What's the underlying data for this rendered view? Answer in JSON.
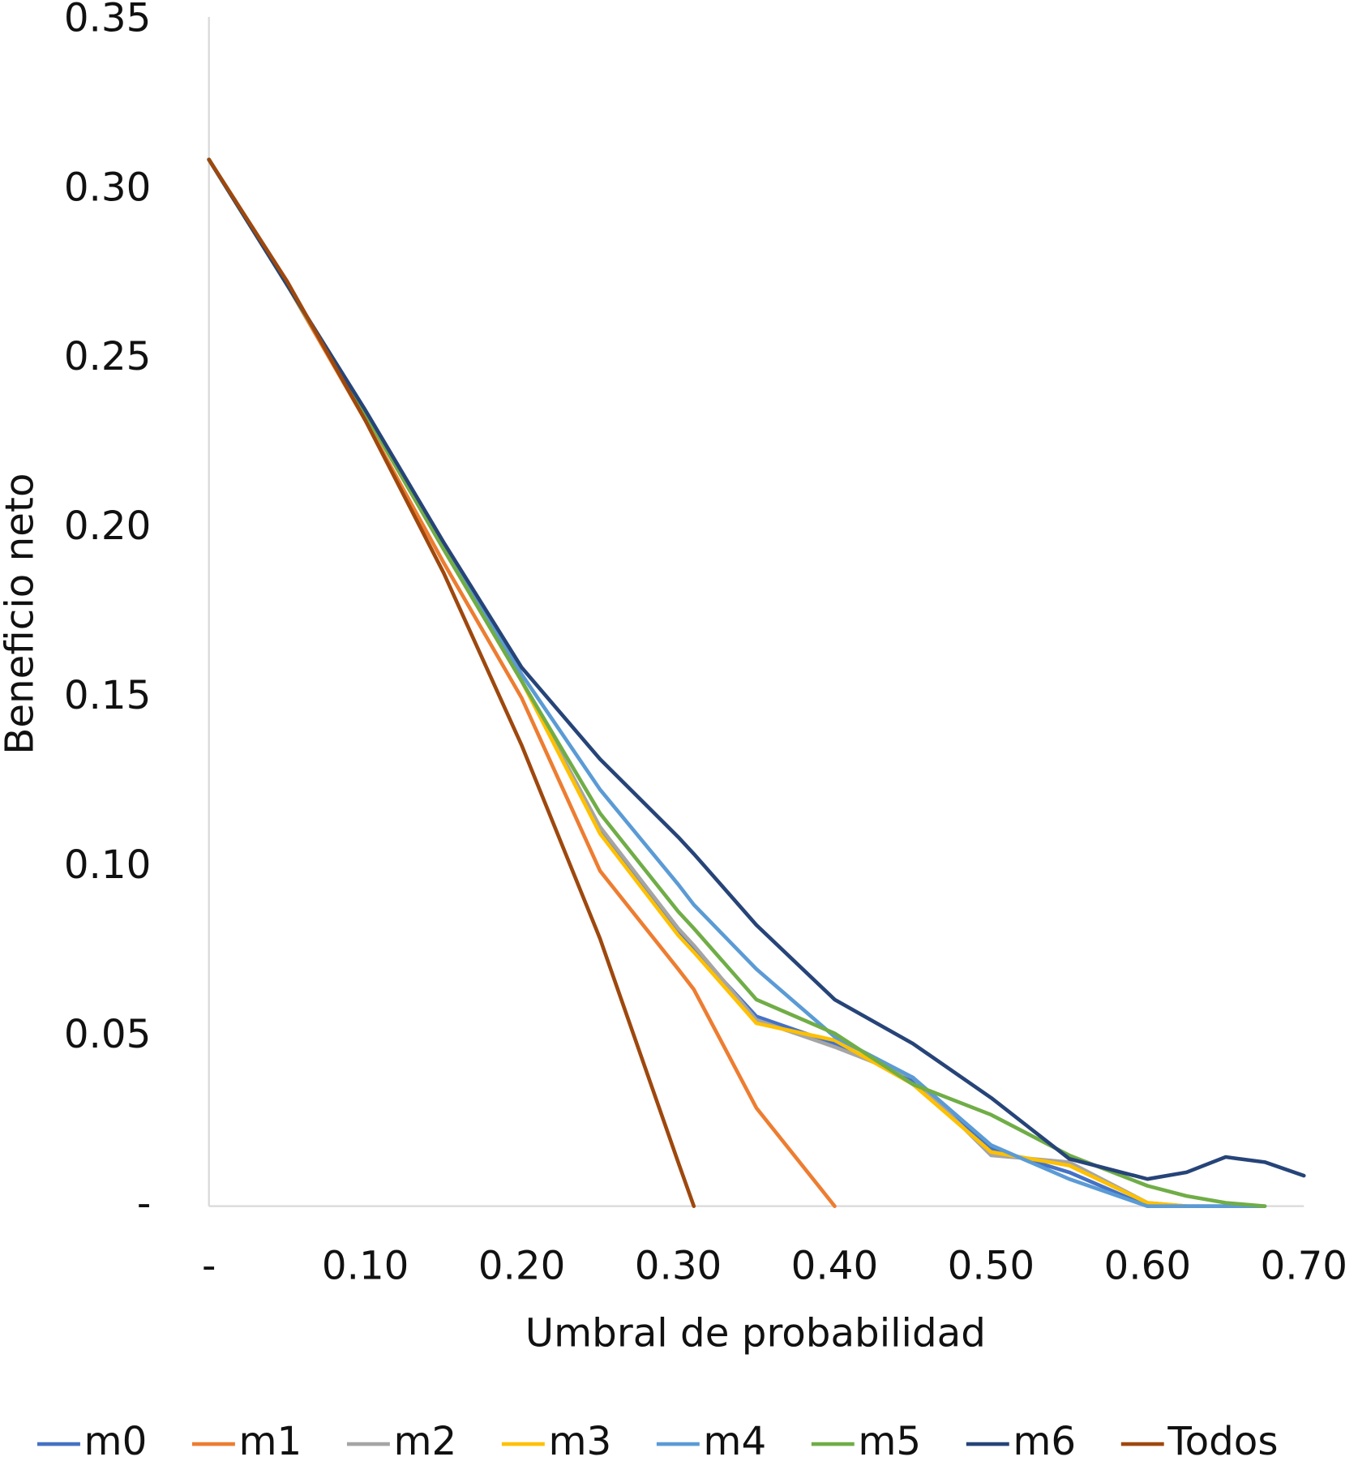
{
  "chart_data": {
    "type": "line",
    "x_label": "Umbral de probabilidad",
    "y_label": "Beneficio neto",
    "x": [
      0,
      0.05,
      0.1,
      0.15,
      0.2,
      0.25,
      0.3,
      0.31,
      0.35,
      0.4,
      0.45,
      0.5,
      0.55,
      0.6,
      0.625,
      0.65,
      0.675,
      0.7
    ],
    "xlim": [
      0,
      0.7
    ],
    "xticks": [
      {
        "value": 0,
        "label": "-"
      },
      {
        "value": 0.1,
        "label": "0.10"
      },
      {
        "value": 0.2,
        "label": "0.20"
      },
      {
        "value": 0.3,
        "label": "0.30"
      },
      {
        "value": 0.4,
        "label": "0.40"
      },
      {
        "value": 0.5,
        "label": "0.50"
      },
      {
        "value": 0.6,
        "label": "0.60"
      },
      {
        "value": 0.7,
        "label": "0.70"
      }
    ],
    "ylim": [
      0,
      0.35
    ],
    "yticks": [
      {
        "value": 0,
        "label": "-"
      },
      {
        "value": 0.05,
        "label": "0.05"
      },
      {
        "value": 0.1,
        "label": "0.10"
      },
      {
        "value": 0.15,
        "label": "0.15"
      },
      {
        "value": 0.2,
        "label": "0.20"
      },
      {
        "value": 0.25,
        "label": "0.25"
      },
      {
        "value": 0.3,
        "label": "0.30"
      },
      {
        "value": 0.35,
        "label": "0.35"
      }
    ],
    "grid": false,
    "legend": "bottom",
    "series": [
      {
        "name": "m0",
        "color": "#4472c4",
        "values": [
          0.309,
          0.272,
          0.234,
          0.194,
          0.155,
          0.111,
          0.081,
          0.076,
          0.056,
          0.048,
          0.037,
          0.017,
          0.01,
          0,
          0,
          0,
          null,
          null
        ]
      },
      {
        "name": "m1",
        "color": "#ed7d31",
        "values": [
          0.309,
          0.272,
          0.232,
          0.19,
          0.15,
          0.099,
          0.07,
          0.064,
          0.029,
          0,
          null,
          null,
          null,
          null,
          null,
          null,
          null,
          null
        ]
      },
      {
        "name": "m2",
        "color": "#a5a5a5",
        "values": [
          0.309,
          0.272,
          0.234,
          0.194,
          0.155,
          0.112,
          0.082,
          0.077,
          0.055,
          0.047,
          0.038,
          0.015,
          0.013,
          0.001,
          0,
          null,
          null,
          null
        ]
      },
      {
        "name": "m3",
        "color": "#ffc000",
        "values": [
          0.309,
          0.272,
          0.234,
          0.194,
          0.155,
          0.11,
          0.08,
          0.075,
          0.054,
          0.049,
          0.036,
          0.016,
          0.012,
          0.001,
          0,
          null,
          null,
          null
        ]
      },
      {
        "name": "m4",
        "color": "#5b9bd5",
        "values": [
          0.309,
          0.272,
          0.234,
          0.195,
          0.157,
          0.123,
          0.095,
          0.089,
          0.07,
          0.05,
          0.038,
          0.018,
          0.008,
          0,
          0,
          0,
          0,
          null
        ]
      },
      {
        "name": "m5",
        "color": "#70ad47",
        "values": [
          0.309,
          0.272,
          0.234,
          0.194,
          0.155,
          0.116,
          0.087,
          0.082,
          0.061,
          0.051,
          0.036,
          0.027,
          0.015,
          0.006,
          0.003,
          0.001,
          0,
          null
        ]
      },
      {
        "name": "m6",
        "color": "#264478",
        "values": [
          0.309,
          0.272,
          0.235,
          0.196,
          0.159,
          0.132,
          0.109,
          0.104,
          0.083,
          0.061,
          0.048,
          0.032,
          0.014,
          0.008,
          0.01,
          0.0145,
          0.013,
          0.009
        ]
      },
      {
        "name": "Todos",
        "color": "#9e480e",
        "values": [
          0.309,
          0.273,
          0.232,
          0.187,
          0.136,
          0.079,
          0.013,
          0,
          null,
          null,
          null,
          null,
          null,
          null,
          null,
          null,
          null,
          null
        ]
      }
    ]
  }
}
